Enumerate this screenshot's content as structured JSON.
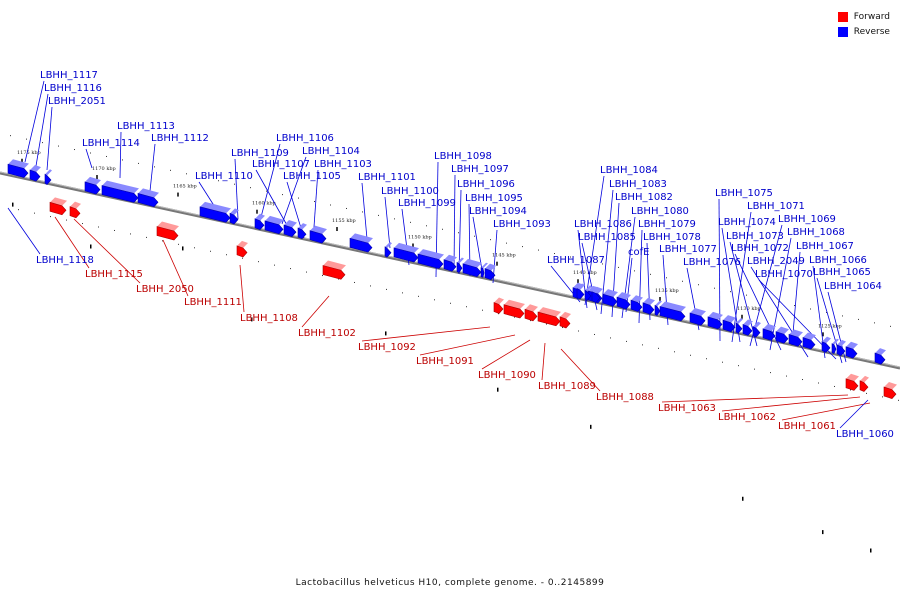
{
  "legend": [
    {
      "label": "Forward",
      "color": "#ff0000"
    },
    {
      "label": "Reverse",
      "color": "#0000ff"
    }
  ],
  "caption": "Lactobacillus helveticus H10, complete genome. - 0..2145899",
  "colors": {
    "forward": "#ff0000",
    "reverse": "#0000ff",
    "forward_label": "#bb0000",
    "reverse_label": "#0000cc",
    "leader_forward": "#cc0000",
    "leader_reverse": "#0000dd",
    "backbone": "#777777"
  },
  "ticks": [
    "1175 kbp",
    "1170 kbp",
    "1165 kbp",
    "1160 kbp",
    "1155 kbp",
    "1150 kbp",
    "1145 kbp",
    "1140 kbp",
    "1135 kbp",
    "1130 kbp",
    "1125 kbp"
  ],
  "genes": [
    {
      "name": "LBHH_1117",
      "strand": "reverse"
    },
    {
      "name": "LBHH_1116",
      "strand": "reverse"
    },
    {
      "name": "LBHH_2051",
      "strand": "reverse"
    },
    {
      "name": "LBHH_1118",
      "strand": "reverse"
    },
    {
      "name": "LBHH_1113",
      "strand": "reverse"
    },
    {
      "name": "LBHH_1114",
      "strand": "reverse"
    },
    {
      "name": "LBHH_1112",
      "strand": "reverse"
    },
    {
      "name": "LBHH_1115",
      "strand": "forward"
    },
    {
      "name": "LBHH_2050",
      "strand": "forward"
    },
    {
      "name": "LBHH_1111",
      "strand": "forward"
    },
    {
      "name": "LBHH_1106",
      "strand": "reverse"
    },
    {
      "name": "LBHH_1109",
      "strand": "reverse"
    },
    {
      "name": "LBHH_1104",
      "strand": "reverse"
    },
    {
      "name": "LBHH_1107",
      "strand": "reverse"
    },
    {
      "name": "LBHH_1103",
      "strand": "reverse"
    },
    {
      "name": "LBHH_1110",
      "strand": "reverse"
    },
    {
      "name": "LBHH_1105",
      "strand": "reverse"
    },
    {
      "name": "LBHH_1108",
      "strand": "forward"
    },
    {
      "name": "LBHH_1101",
      "strand": "reverse"
    },
    {
      "name": "LBHH_1100",
      "strand": "reverse"
    },
    {
      "name": "LBHH_1099",
      "strand": "reverse"
    },
    {
      "name": "LBHH_1102",
      "strand": "forward"
    },
    {
      "name": "LBHH_1098",
      "strand": "reverse"
    },
    {
      "name": "LBHH_1097",
      "strand": "reverse"
    },
    {
      "name": "LBHH_1096",
      "strand": "reverse"
    },
    {
      "name": "LBHH_1095",
      "strand": "reverse"
    },
    {
      "name": "LBHH_1094",
      "strand": "reverse"
    },
    {
      "name": "LBHH_1093",
      "strand": "reverse"
    },
    {
      "name": "LBHH_1092",
      "strand": "forward"
    },
    {
      "name": "LBHH_1091",
      "strand": "forward"
    },
    {
      "name": "LBHH_1090",
      "strand": "forward"
    },
    {
      "name": "LBHH_1089",
      "strand": "forward"
    },
    {
      "name": "LBHH_1088",
      "strand": "forward"
    },
    {
      "name": "LBHH_1084",
      "strand": "reverse"
    },
    {
      "name": "LBHH_1083",
      "strand": "reverse"
    },
    {
      "name": "LBHH_1082",
      "strand": "reverse"
    },
    {
      "name": "LBHH_1080",
      "strand": "reverse"
    },
    {
      "name": "LBHH_1086",
      "strand": "reverse"
    },
    {
      "name": "LBHH_1079",
      "strand": "reverse"
    },
    {
      "name": "LBHH_1085",
      "strand": "reverse"
    },
    {
      "name": "LBHH_1078",
      "strand": "reverse"
    },
    {
      "name": "cofE",
      "strand": "reverse"
    },
    {
      "name": "LBHH_1077",
      "strand": "reverse"
    },
    {
      "name": "LBHH_1087",
      "strand": "reverse"
    },
    {
      "name": "LBHH_1076",
      "strand": "reverse"
    },
    {
      "name": "LBHH_1075",
      "strand": "reverse"
    },
    {
      "name": "LBHH_1071",
      "strand": "reverse"
    },
    {
      "name": "LBHH_1074",
      "strand": "reverse"
    },
    {
      "name": "LBHH_1069",
      "strand": "reverse"
    },
    {
      "name": "LBHH_1073",
      "strand": "reverse"
    },
    {
      "name": "LBHH_1068",
      "strand": "reverse"
    },
    {
      "name": "LBHH_1072",
      "strand": "reverse"
    },
    {
      "name": "LBHH_1067",
      "strand": "reverse"
    },
    {
      "name": "LBHH_2049",
      "strand": "reverse"
    },
    {
      "name": "LBHH_1066",
      "strand": "reverse"
    },
    {
      "name": "LBHH_1070",
      "strand": "reverse"
    },
    {
      "name": "LBHH_1065",
      "strand": "reverse"
    },
    {
      "name": "LBHH_1064",
      "strand": "reverse"
    },
    {
      "name": "LBHH_1063",
      "strand": "forward"
    },
    {
      "name": "LBHH_1062",
      "strand": "forward"
    },
    {
      "name": "LBHH_1061",
      "strand": "forward"
    },
    {
      "name": "LBHH_1060",
      "strand": "reverse"
    }
  ]
}
